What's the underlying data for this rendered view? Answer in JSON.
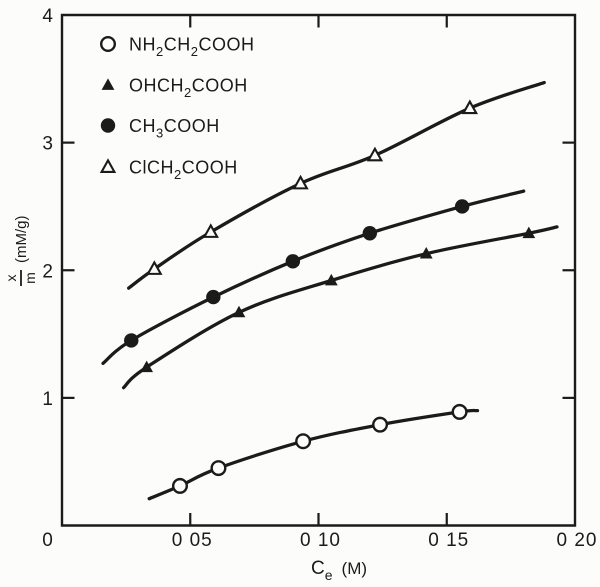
{
  "figure": {
    "background": "#fcfcfa",
    "ink": "#1b1b1b"
  },
  "axis_titles": {
    "x": {
      "main": "C",
      "sub": "e",
      "units": "(M)"
    },
    "y": {
      "numerator": "x",
      "denominator": "m",
      "units": "(mM/g)"
    }
  },
  "legend": {
    "items": [
      {
        "marker": "open-circle",
        "label": "NH2CH2COOH",
        "segments": [
          {
            "t": "NH"
          },
          {
            "t": "2",
            "sub": true
          },
          {
            "t": "CH"
          },
          {
            "t": "2",
            "sub": true
          },
          {
            "t": "COOH"
          }
        ]
      },
      {
        "marker": "filled-triangle",
        "label": "OHCH2COOH",
        "segments": [
          {
            "t": "OHCH"
          },
          {
            "t": "2",
            "sub": true
          },
          {
            "t": "COOH"
          }
        ]
      },
      {
        "marker": "filled-circle",
        "label": "CH3COOH",
        "segments": [
          {
            "t": "CH"
          },
          {
            "t": "3",
            "sub": true
          },
          {
            "t": "COOH"
          }
        ]
      },
      {
        "marker": "open-triangle",
        "label": "ClCH2COOH",
        "segments": [
          {
            "t": "ClCH"
          },
          {
            "t": "2",
            "sub": true
          },
          {
            "t": "COOH"
          }
        ]
      }
    ]
  },
  "chart_data": {
    "type": "line",
    "title": "",
    "xlabel": "Ce (M)",
    "ylabel": "x/m (mM/g)",
    "xlim": [
      0,
      0.2
    ],
    "ylim": [
      0,
      4
    ],
    "grid": false,
    "legend_position": "upper-left-inside",
    "x_ticks": [
      {
        "value": 0,
        "label": "0"
      },
      {
        "value": 0.05,
        "label": "0 05"
      },
      {
        "value": 0.1,
        "label": "0 10"
      },
      {
        "value": 0.15,
        "label": "0 15"
      },
      {
        "value": 0.2,
        "label": "0 20"
      }
    ],
    "y_ticks": [
      {
        "value": 1,
        "label": "1"
      },
      {
        "value": 2,
        "label": "2"
      },
      {
        "value": 3,
        "label": "3"
      },
      {
        "value": 4,
        "label": "4"
      }
    ],
    "series": [
      {
        "name": "NH2CH2COOH",
        "marker": "open-circle",
        "points": [
          [
            0.046,
            0.31
          ],
          [
            0.061,
            0.45
          ],
          [
            0.094,
            0.66
          ],
          [
            0.124,
            0.79
          ],
          [
            0.155,
            0.89
          ]
        ],
        "curve_start": [
          0.034,
          0.21
        ],
        "curve_end": [
          0.162,
          0.9
        ]
      },
      {
        "name": "OHCH2COOH",
        "marker": "filled-triangle",
        "points": [
          [
            0.033,
            1.24
          ],
          [
            0.069,
            1.67
          ],
          [
            0.105,
            1.92
          ],
          [
            0.142,
            2.13
          ],
          [
            0.182,
            2.29
          ]
        ],
        "curve_start": [
          0.024,
          1.08
        ],
        "curve_end": [
          0.193,
          2.34
        ]
      },
      {
        "name": "CH3COOH",
        "marker": "filled-circle",
        "points": [
          [
            0.027,
            1.45
          ],
          [
            0.059,
            1.79
          ],
          [
            0.09,
            2.07
          ],
          [
            0.12,
            2.29
          ],
          [
            0.156,
            2.5
          ]
        ],
        "curve_start": [
          0.016,
          1.27
        ],
        "curve_end": [
          0.18,
          2.62
        ]
      },
      {
        "name": "ClCH2COOH",
        "marker": "open-triangle",
        "points": [
          [
            0.036,
            2.01
          ],
          [
            0.058,
            2.3
          ],
          [
            0.093,
            2.68
          ],
          [
            0.122,
            2.9
          ],
          [
            0.159,
            3.27
          ]
        ],
        "curve_start": [
          0.026,
          1.86
        ],
        "curve_end": [
          0.188,
          3.47
        ]
      }
    ]
  }
}
